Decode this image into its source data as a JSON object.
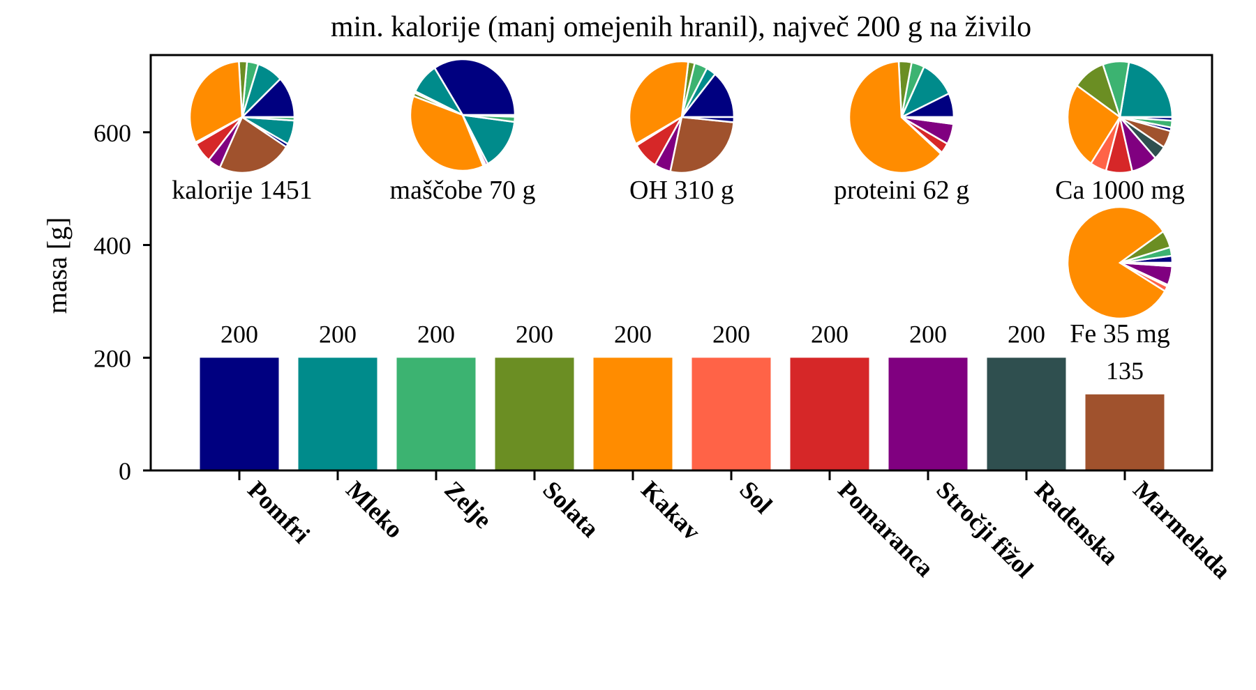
{
  "chart_data": {
    "type": "bar",
    "title": "min. kalorije (manj omejenih hranil), največ 200 g na živilo",
    "xlabel": "",
    "ylabel": "masa [g]",
    "ylim": [
      0,
      737
    ],
    "yticks": [
      0,
      200,
      400,
      600
    ],
    "grid": false,
    "categories": [
      "Pomfri",
      "Mleko",
      "Zelje",
      "Solata",
      "Kakav",
      "Sol",
      "Pomaranca",
      "Stročji fižol",
      "Radenska",
      "Marmelada"
    ],
    "values": [
      200,
      200,
      200,
      200,
      200,
      200,
      200,
      200,
      200,
      135
    ],
    "value_labels": [
      "200",
      "200",
      "200",
      "200",
      "200",
      "200",
      "200",
      "200",
      "200",
      "135"
    ],
    "colors": [
      "#000080",
      "#008b8b",
      "#3cb371",
      "#6b8e23",
      "#ff8c00",
      "#ff6347",
      "#d62728",
      "#800080",
      "#2f4f4f",
      "#a0522d"
    ],
    "pies": [
      {
        "label": "kalorije 1451",
        "slices": [
          [
            0,
            12
          ],
          [
            1,
            8
          ],
          [
            2,
            3.5
          ],
          [
            3,
            2.5
          ],
          [
            4,
            31.5
          ],
          [
            5,
            0.5
          ],
          [
            6,
            6
          ],
          [
            7,
            4
          ],
          [
            9,
            23
          ],
          [
            0,
            1
          ],
          [
            1,
            7
          ],
          [
            2,
            1
          ]
        ]
      },
      {
        "label": "maščobe 70 g",
        "slices": [
          [
            0,
            34
          ],
          [
            1,
            9
          ],
          [
            2,
            0.5
          ],
          [
            3,
            1
          ],
          [
            4,
            37
          ],
          [
            5,
            0.3
          ],
          [
            6,
            0.5
          ],
          [
            7,
            0.7
          ],
          [
            1,
            15
          ],
          [
            2,
            1.5
          ],
          [
            9,
            0.5
          ]
        ]
      },
      {
        "label": "OH 310 g",
        "slices": [
          [
            0,
            14
          ],
          [
            1,
            3
          ],
          [
            2,
            4
          ],
          [
            3,
            2
          ],
          [
            4,
            35
          ],
          [
            5,
            0.5
          ],
          [
            6,
            8
          ],
          [
            7,
            5
          ],
          [
            9,
            27
          ],
          [
            0,
            1.5
          ]
        ]
      },
      {
        "label": "proteini 62 g",
        "slices": [
          [
            0,
            7
          ],
          [
            1,
            11
          ],
          [
            2,
            4
          ],
          [
            3,
            4
          ],
          [
            4,
            63
          ],
          [
            5,
            0.5
          ],
          [
            6,
            3
          ],
          [
            7,
            6
          ],
          [
            9,
            0.5
          ],
          [
            1,
            0.5
          ],
          [
            2,
            0.5
          ],
          [
            0,
            0.5
          ]
        ]
      },
      {
        "label": "Ca 1000 mg",
        "slices": [
          [
            1,
            22
          ],
          [
            2,
            8
          ],
          [
            3,
            10
          ],
          [
            4,
            25
          ],
          [
            5,
            5
          ],
          [
            6,
            8
          ],
          [
            7,
            8
          ],
          [
            8,
            4
          ],
          [
            9,
            5
          ],
          [
            0,
            1
          ],
          [
            2,
            2
          ],
          [
            0,
            1
          ]
        ]
      },
      {
        "label": "Fe 35 mg",
        "slices": [
          [
            0,
            2
          ],
          [
            2,
            2.5
          ],
          [
            3,
            5
          ],
          [
            4,
            82
          ],
          [
            5,
            1.5
          ],
          [
            6,
            0.5
          ],
          [
            7,
            5.5
          ],
          [
            8,
            0.5
          ],
          [
            9,
            0.5
          ]
        ]
      }
    ]
  }
}
